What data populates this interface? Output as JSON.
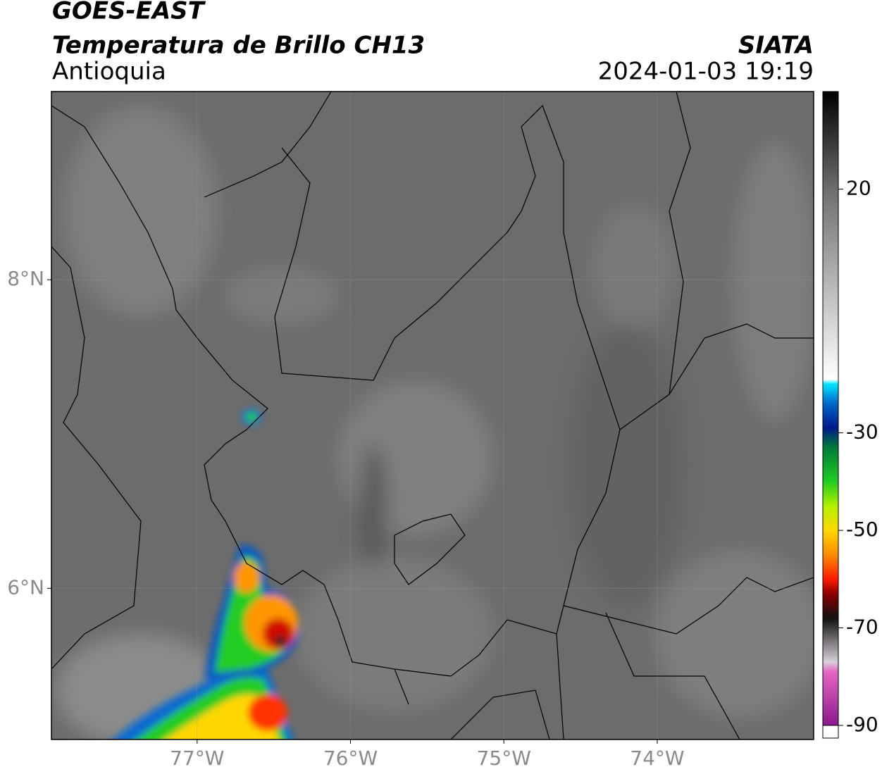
{
  "header": {
    "satellite": "GOES-EAST",
    "product": "Temperatura de Brillo CH13",
    "region": "Antioquia",
    "source": "SIATA",
    "datetime": "2024-01-03 19:19"
  },
  "map": {
    "xlim": [
      -77.95,
      -72.98
    ],
    "ylim": [
      5.02,
      9.22
    ],
    "xticks": [
      {
        "value": -77,
        "label": "77°W"
      },
      {
        "value": -76,
        "label": "76°W"
      },
      {
        "value": -75,
        "label": "75°W"
      },
      {
        "value": -74,
        "label": "74°W"
      }
    ],
    "yticks": [
      {
        "value": 8,
        "label": "8°N"
      },
      {
        "value": 6,
        "label": "6°N"
      }
    ],
    "grid": true
  },
  "colorbar": {
    "lim": [
      -90,
      40
    ],
    "ticks": [
      20,
      -30,
      -50,
      -70,
      -90
    ],
    "stops": [
      {
        "value": -90,
        "color": "#8b1a8b"
      },
      {
        "value": -79,
        "color": "#e466c4"
      },
      {
        "value": -77,
        "color": "#d8d0d8"
      },
      {
        "value": -68,
        "color": "#111111"
      },
      {
        "value": -63,
        "color": "#8b0000"
      },
      {
        "value": -60,
        "color": "#ff1a00"
      },
      {
        "value": -55,
        "color": "#ff8c00"
      },
      {
        "value": -50,
        "color": "#ffd700"
      },
      {
        "value": -45,
        "color": "#b4f000"
      },
      {
        "value": -40,
        "color": "#22cc22"
      },
      {
        "value": -33,
        "color": "#007a3a"
      },
      {
        "value": -29,
        "color": "#001a8a"
      },
      {
        "value": -24,
        "color": "#0066c8"
      },
      {
        "value": -20,
        "color": "#00e5ff"
      },
      {
        "value": -19,
        "color": "#ffffff"
      },
      {
        "value": 20,
        "color": "#6e6e6e"
      },
      {
        "value": 40,
        "color": "#000000"
      }
    ]
  }
}
